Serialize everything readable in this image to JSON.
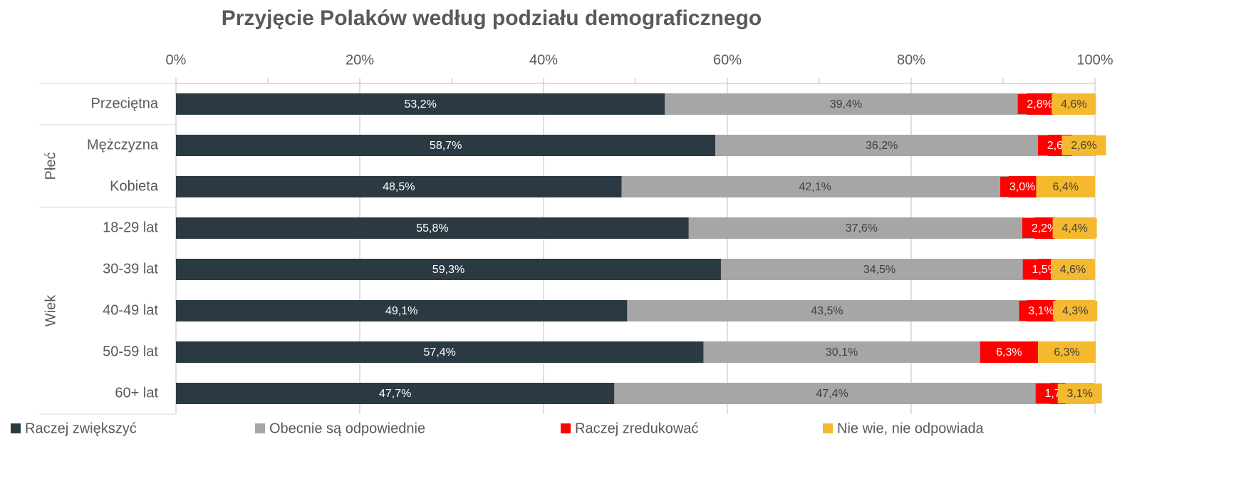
{
  "chart_data": {
    "type": "stacked_barh",
    "title": "Przyjęcie Polaków według podziału demograficznego",
    "categories": [
      "Przeciętna",
      "Mężczyzna",
      "Kobieta",
      "18-29 lat",
      "30-39 lat",
      "40-49 lat",
      "50-59 lat",
      "60+ lat"
    ],
    "category_groups": [
      null,
      "Płeć",
      "Płeć",
      "Wiek",
      "Wiek",
      "Wiek",
      "Wiek",
      "Wiek"
    ],
    "series": [
      {
        "name": "Raczej zwiększyć",
        "color": "#2b3a42",
        "label_color": "#ffffff",
        "values": [
          53.2,
          58.7,
          48.5,
          55.8,
          59.3,
          49.1,
          57.4,
          47.7
        ],
        "value_labels": [
          "53,2%",
          "58,7%",
          "48,5%",
          "55,8%",
          "59,3%",
          "49,1%",
          "57,4%",
          "47,7%"
        ]
      },
      {
        "name": "Obecnie są odpowiednie",
        "color": "#a6a6a6",
        "label_color": "#404040",
        "values": [
          39.4,
          36.2,
          42.1,
          37.6,
          34.5,
          43.5,
          30.1,
          47.4
        ],
        "value_labels": [
          "39,4%",
          "36,2%",
          "42,1%",
          "37,6%",
          "34,5%",
          "43,5%",
          "30,1%",
          "47,4%"
        ]
      },
      {
        "name": "Raczej zredukować",
        "color": "#ff0000",
        "label_color": "#ffffff",
        "values": [
          2.8,
          2.6,
          3.0,
          2.2,
          1.5,
          3.1,
          6.3,
          1.7
        ],
        "value_labels": [
          "2,8%",
          "2,6%",
          "3,0%",
          "2,2%",
          "1,5%",
          "3,1%",
          "6,3%",
          "1,7%"
        ]
      },
      {
        "name": "Nie wie, nie odpowiada",
        "color": "#f4b92f",
        "label_color": "#404040",
        "values": [
          4.6,
          2.6,
          6.4,
          4.4,
          4.6,
          4.3,
          6.3,
          3.1
        ],
        "value_labels": [
          "4,6%",
          "2,6%",
          "6,4%",
          "4,4%",
          "4,6%",
          "4,3%",
          "6,3%",
          "3,1%"
        ]
      }
    ],
    "xlim": [
      0,
      100
    ],
    "xticks": [
      {
        "value": 0,
        "label": "0%"
      },
      {
        "value": 20,
        "label": "20%"
      },
      {
        "value": 40,
        "label": "40%"
      },
      {
        "value": 60,
        "label": "60%"
      },
      {
        "value": 80,
        "label": "80%"
      },
      {
        "value": 100,
        "label": "100%"
      }
    ],
    "xminor_ticks": [
      10,
      30,
      50,
      70,
      90
    ],
    "grid": true,
    "legend": "bottom"
  }
}
